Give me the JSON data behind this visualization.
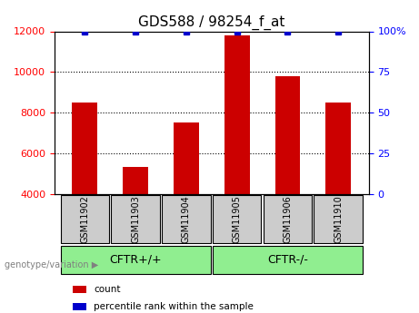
{
  "title": "GDS588 / 98254_f_at",
  "samples": [
    "GSM11902",
    "GSM11903",
    "GSM11904",
    "GSM11905",
    "GSM11906",
    "GSM11910"
  ],
  "count_values": [
    8500,
    5350,
    7500,
    11800,
    9800,
    8500
  ],
  "percentile_values": [
    100,
    100,
    100,
    100,
    100,
    100
  ],
  "bar_color": "#cc0000",
  "dot_color": "#0000cc",
  "ylim_left": [
    4000,
    12000
  ],
  "ylim_right": [
    0,
    100
  ],
  "yticks_left": [
    4000,
    6000,
    8000,
    10000,
    12000
  ],
  "yticks_right": [
    0,
    25,
    50,
    75,
    100
  ],
  "ytick_labels_right": [
    "0",
    "25",
    "50",
    "75",
    "100%"
  ],
  "groups": [
    {
      "label": "CFTR+/+",
      "indices": [
        0,
        1,
        2
      ],
      "color": "#90ee90"
    },
    {
      "label": "CFTR-/-",
      "indices": [
        3,
        4,
        5
      ],
      "color": "#90ee90"
    }
  ],
  "group_label_prefix": "genotype/variation",
  "legend_items": [
    {
      "color": "#cc0000",
      "label": "count"
    },
    {
      "color": "#0000cc",
      "label": "percentile rank within the sample"
    }
  ],
  "bar_width": 0.5,
  "baseline": 4000,
  "sample_box_color": "#cccccc",
  "grid_color": "#000000",
  "grid_linestyle": "dotted"
}
